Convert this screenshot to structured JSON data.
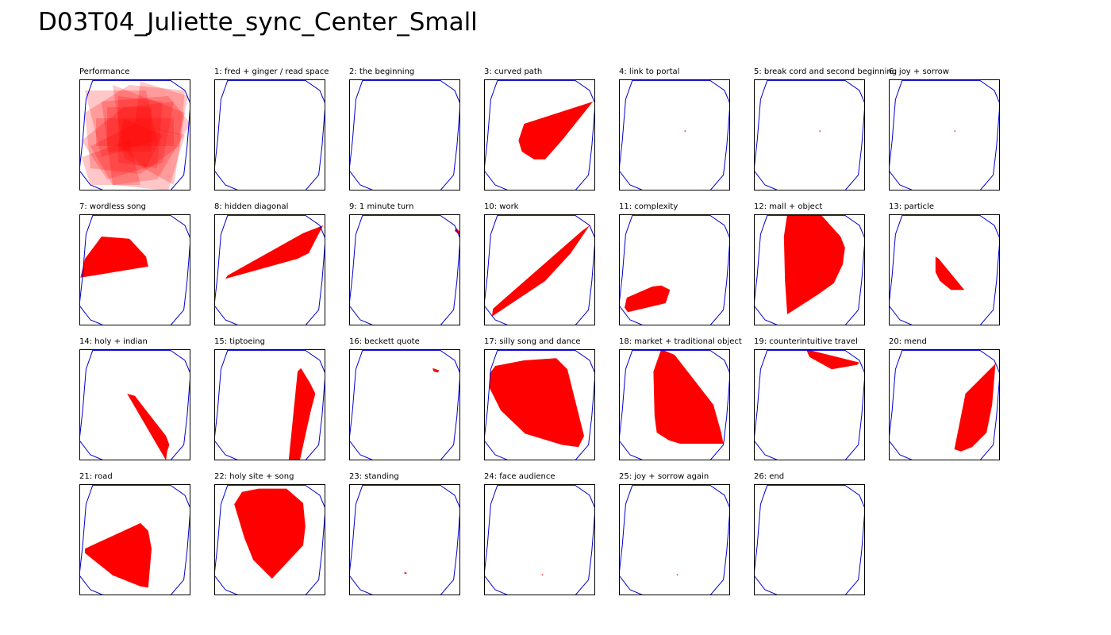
{
  "title": "D03T04_Juliette_sync_Center_Small",
  "colors": {
    "boundary": "#0000cc",
    "shape": "#ff0000",
    "frame": "#000000"
  },
  "chart_data": {
    "type": "area",
    "description_units": "normalized panel coordinates, x/y in [0,1], y measured downward",
    "boundary_polygon": [
      [
        0.12,
        0.01
      ],
      [
        0.82,
        0.01
      ],
      [
        0.95,
        0.1
      ],
      [
        1.0,
        0.22
      ],
      [
        0.97,
        0.6
      ],
      [
        0.94,
        0.86
      ],
      [
        0.82,
        1.0
      ],
      [
        0.22,
        1.0
      ],
      [
        0.1,
        0.95
      ],
      [
        0.0,
        0.82
      ],
      [
        0.03,
        0.55
      ],
      [
        0.06,
        0.18
      ]
    ],
    "panels": [
      {
        "label": "Performance",
        "overlay": true,
        "shapes": [
          [
            [
              0.05,
              0.3
            ],
            [
              0.45,
              0.05
            ],
            [
              0.95,
              0.1
            ],
            [
              0.9,
              0.6
            ],
            [
              0.55,
              0.85
            ],
            [
              0.1,
              0.8
            ]
          ],
          [
            [
              0.2,
              0.2
            ],
            [
              0.8,
              0.15
            ],
            [
              1.0,
              0.4
            ],
            [
              0.7,
              0.9
            ],
            [
              0.3,
              0.95
            ]
          ],
          [
            [
              0.02,
              0.55
            ],
            [
              0.4,
              0.25
            ],
            [
              0.85,
              0.2
            ],
            [
              0.75,
              0.75
            ],
            [
              0.25,
              0.9
            ]
          ],
          [
            [
              0.3,
              0.05
            ],
            [
              0.95,
              0.3
            ],
            [
              0.85,
              0.95
            ],
            [
              0.4,
              0.7
            ]
          ],
          [
            [
              0.05,
              0.1
            ],
            [
              0.6,
              0.1
            ],
            [
              0.7,
              0.55
            ],
            [
              0.2,
              0.7
            ]
          ],
          [
            [
              0.1,
              0.6
            ],
            [
              0.5,
              0.4
            ],
            [
              0.95,
              0.5
            ],
            [
              0.8,
              1.0
            ],
            [
              0.3,
              0.95
            ]
          ],
          [
            [
              0.35,
              0.15
            ],
            [
              0.75,
              0.2
            ],
            [
              0.7,
              0.8
            ],
            [
              0.35,
              0.75
            ]
          ],
          [
            [
              0.15,
              0.35
            ],
            [
              0.85,
              0.35
            ],
            [
              0.85,
              0.6
            ],
            [
              0.15,
              0.6
            ]
          ],
          [
            [
              0.55,
              0.02
            ],
            [
              0.98,
              0.15
            ],
            [
              0.9,
              0.5
            ],
            [
              0.5,
              0.4
            ]
          ],
          [
            [
              0.02,
              0.7
            ],
            [
              0.45,
              0.55
            ],
            [
              0.55,
              0.95
            ],
            [
              0.1,
              0.95
            ]
          ],
          [
            [
              0.25,
              0.25
            ],
            [
              0.65,
              0.25
            ],
            [
              0.65,
              0.65
            ],
            [
              0.25,
              0.65
            ]
          ],
          [
            [
              0.4,
              0.35
            ],
            [
              0.75,
              0.5
            ],
            [
              0.6,
              0.8
            ],
            [
              0.35,
              0.6
            ]
          ]
        ]
      },
      {
        "label": "1: fred + ginger / read space",
        "shapes": []
      },
      {
        "label": "2: the beginning",
        "shapes": []
      },
      {
        "label": "3: curved path",
        "shapes": [
          [
            [
              0.98,
              0.2
            ],
            [
              0.7,
              0.55
            ],
            [
              0.55,
              0.72
            ],
            [
              0.45,
              0.72
            ],
            [
              0.34,
              0.65
            ],
            [
              0.31,
              0.55
            ],
            [
              0.36,
              0.4
            ]
          ]
        ]
      },
      {
        "label": "4: link to portal",
        "shapes": [
          [
            [
              0.59,
              0.46
            ],
            [
              0.6,
              0.46
            ],
            [
              0.6,
              0.47
            ],
            [
              0.59,
              0.47
            ]
          ]
        ]
      },
      {
        "label": "5: break cord and second beginning",
        "shapes": [
          [
            [
              0.59,
              0.46
            ],
            [
              0.6,
              0.46
            ],
            [
              0.6,
              0.47
            ],
            [
              0.59,
              0.47
            ]
          ]
        ]
      },
      {
        "label": "6: joy + sorrow",
        "shapes": [
          [
            [
              0.59,
              0.46
            ],
            [
              0.6,
              0.46
            ],
            [
              0.6,
              0.47
            ],
            [
              0.59,
              0.47
            ]
          ]
        ]
      },
      {
        "label": "7: wordless song",
        "shapes": [
          [
            [
              0.2,
              0.2
            ],
            [
              0.45,
              0.22
            ],
            [
              0.6,
              0.38
            ],
            [
              0.62,
              0.47
            ],
            [
              0.01,
              0.57
            ],
            [
              0.05,
              0.4
            ]
          ]
        ]
      },
      {
        "label": "8: hidden diagonal",
        "shapes": [
          [
            [
              0.98,
              0.1
            ],
            [
              0.85,
              0.35
            ],
            [
              0.75,
              0.4
            ],
            [
              0.1,
              0.58
            ],
            [
              0.12,
              0.55
            ],
            [
              0.8,
              0.17
            ]
          ]
        ]
      },
      {
        "label": "9: 1 minute turn",
        "shapes": [
          [
            [
              0.96,
              0.12
            ],
            [
              1.0,
              0.16
            ],
            [
              0.99,
              0.18
            ],
            [
              0.95,
              0.15
            ]
          ]
        ]
      },
      {
        "label": "10: work",
        "shapes": [
          [
            [
              0.95,
              0.1
            ],
            [
              0.78,
              0.35
            ],
            [
              0.55,
              0.6
            ],
            [
              0.07,
              0.92
            ],
            [
              0.08,
              0.85
            ],
            [
              0.88,
              0.15
            ]
          ]
        ]
      },
      {
        "label": "11: complexity",
        "shapes": [
          [
            [
              0.3,
              0.65
            ],
            [
              0.38,
              0.64
            ],
            [
              0.46,
              0.68
            ],
            [
              0.42,
              0.8
            ],
            [
              0.08,
              0.88
            ],
            [
              0.05,
              0.84
            ],
            [
              0.07,
              0.75
            ]
          ]
        ]
      },
      {
        "label": "12: mall + object",
        "shapes": [
          [
            [
              0.3,
              0.0
            ],
            [
              0.6,
              0.0
            ],
            [
              0.78,
              0.2
            ],
            [
              0.82,
              0.3
            ],
            [
              0.8,
              0.45
            ],
            [
              0.72,
              0.62
            ],
            [
              0.58,
              0.72
            ],
            [
              0.3,
              0.9
            ],
            [
              0.28,
              0.6
            ],
            [
              0.27,
              0.2
            ]
          ]
        ]
      },
      {
        "label": "13: particle",
        "shapes": [
          [
            [
              0.42,
              0.38
            ],
            [
              0.45,
              0.4
            ],
            [
              0.68,
              0.68
            ],
            [
              0.56,
              0.68
            ],
            [
              0.46,
              0.6
            ],
            [
              0.42,
              0.52
            ]
          ]
        ]
      },
      {
        "label": "14: holy + indian",
        "shapes": [
          [
            [
              0.43,
              0.4
            ],
            [
              0.5,
              0.42
            ],
            [
              0.78,
              0.78
            ],
            [
              0.81,
              0.86
            ],
            [
              0.79,
              0.92
            ],
            [
              0.78,
              1.0
            ]
          ]
        ]
      },
      {
        "label": "15: tiptoeing",
        "shapes": [
          [
            [
              0.78,
              0.17
            ],
            [
              0.86,
              0.3
            ],
            [
              0.91,
              0.4
            ],
            [
              0.87,
              0.55
            ],
            [
              0.77,
              1.0
            ],
            [
              0.67,
              1.0
            ],
            [
              0.75,
              0.2
            ]
          ]
        ]
      },
      {
        "label": "16: beckett quote",
        "shapes": [
          [
            [
              0.75,
              0.17
            ],
            [
              0.81,
              0.19
            ],
            [
              0.8,
              0.21
            ],
            [
              0.76,
              0.2
            ]
          ]
        ]
      },
      {
        "label": "17: silly song and dance",
        "shapes": [
          [
            [
              0.1,
              0.15
            ],
            [
              0.36,
              0.1
            ],
            [
              0.65,
              0.08
            ],
            [
              0.75,
              0.18
            ],
            [
              0.9,
              0.78
            ],
            [
              0.85,
              0.88
            ],
            [
              0.7,
              0.86
            ],
            [
              0.37,
              0.76
            ],
            [
              0.15,
              0.55
            ],
            [
              0.05,
              0.35
            ],
            [
              0.05,
              0.22
            ]
          ]
        ]
      },
      {
        "label": "18: market + traditional object",
        "shapes": [
          [
            [
              0.38,
              0.0
            ],
            [
              0.5,
              0.05
            ],
            [
              0.68,
              0.28
            ],
            [
              0.85,
              0.5
            ],
            [
              0.92,
              0.75
            ],
            [
              0.94,
              0.85
            ],
            [
              0.55,
              0.85
            ],
            [
              0.45,
              0.82
            ],
            [
              0.34,
              0.75
            ],
            [
              0.32,
              0.6
            ],
            [
              0.31,
              0.2
            ]
          ]
        ]
      },
      {
        "label": "19: counterintuitive travel",
        "shapes": [
          [
            [
              0.47,
              0.0
            ],
            [
              0.95,
              0.12
            ],
            [
              0.93,
              0.14
            ],
            [
              0.7,
              0.18
            ],
            [
              0.5,
              0.07
            ]
          ]
        ]
      },
      {
        "label": "20: mend",
        "shapes": [
          [
            [
              0.96,
              0.13
            ],
            [
              0.93,
              0.5
            ],
            [
              0.88,
              0.75
            ],
            [
              0.75,
              0.88
            ],
            [
              0.65,
              0.92
            ],
            [
              0.59,
              0.9
            ],
            [
              0.69,
              0.4
            ]
          ]
        ]
      },
      {
        "label": "21: road",
        "shapes": [
          [
            [
              0.4,
              0.01
            ],
            [
              0.7,
              0.0
            ],
            [
              0.75,
              0.07
            ],
            [
              0.86,
              0.36
            ],
            [
              0.83,
              0.65
            ],
            [
              0.61,
              0.93
            ],
            [
              0.45,
              0.72
            ],
            [
              0.4,
              0.4
            ],
            [
              0.4,
              0.15
            ]
          ]
        ]
      },
      {
        "label": "22: holy site + song",
        "shapes": [
          [
            [
              0.4,
              0.01
            ],
            [
              0.7,
              0.01
            ],
            [
              0.76,
              0.08
            ],
            [
              0.86,
              0.36
            ],
            [
              0.84,
              0.55
            ],
            [
              0.61,
              0.82
            ],
            [
              0.46,
              0.62
            ],
            [
              0.41,
              0.4
            ]
          ]
        ]
      },
      {
        "label": "23: standing",
        "shapes": [
          [
            [
              0.49,
              0.8
            ],
            [
              0.51,
              0.79
            ],
            [
              0.52,
              0.81
            ]
          ]
        ]
      },
      {
        "label": "24: face audience",
        "shapes": [
          [
            [
              0.52,
              0.81
            ],
            [
              0.53,
              0.81
            ],
            [
              0.53,
              0.82
            ],
            [
              0.52,
              0.82
            ]
          ]
        ]
      },
      {
        "label": "25: joy + sorrow again",
        "shapes": [
          [
            [
              0.52,
              0.81
            ],
            [
              0.53,
              0.81
            ],
            [
              0.53,
              0.82
            ],
            [
              0.52,
              0.82
            ]
          ]
        ]
      },
      {
        "label": "26: end",
        "shapes": []
      }
    ]
  }
}
